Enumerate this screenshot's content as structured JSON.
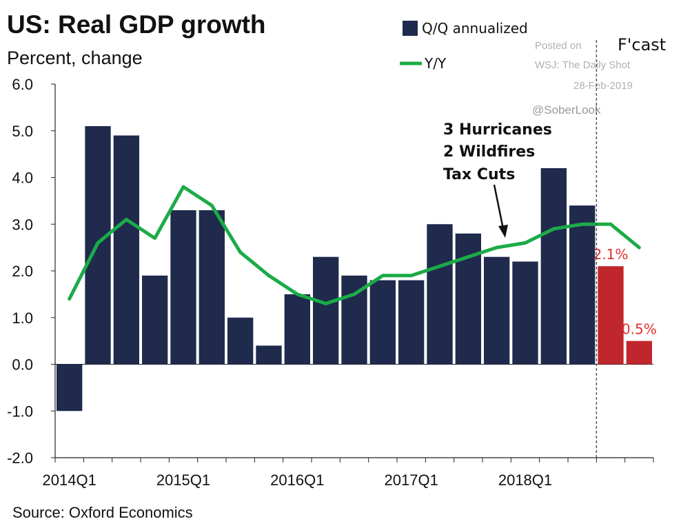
{
  "header": {
    "title": "US: Real GDP growth",
    "subtitle": "Percent, change"
  },
  "legend": {
    "bars_label": "Q/Q annualized",
    "line_label": "Y/Y"
  },
  "watermark": {
    "line1": "Posted on",
    "line2": "WSJ: The Daily Shot",
    "line3": "28-Feb-2019",
    "line4": "@SoberLook"
  },
  "forecast_label": "F'cast",
  "annotation": {
    "line1": "3 Hurricanes",
    "line2": "2 Wildfires",
    "line3": "Tax Cuts"
  },
  "source": "Source: Oxford Economics",
  "colors": {
    "bar": "#1f2a4d",
    "forecast_bar": "#c0272d",
    "line": "#1bab48",
    "label_red": "#e03030"
  },
  "chart_data": {
    "type": "bar",
    "title": "US: Real GDP growth",
    "ylabel": "Percent, change",
    "ylim": [
      -2.0,
      6.0
    ],
    "yticks": [
      "6.0",
      "5.0",
      "4.0",
      "3.0",
      "2.0",
      "1.0",
      "0.0",
      "-1.0",
      "-2.0"
    ],
    "ytick_values": [
      6,
      5,
      4,
      3,
      2,
      1,
      0,
      -1,
      -2
    ],
    "categories": [
      "2014Q1",
      "2014Q2",
      "2014Q3",
      "2014Q4",
      "2015Q1",
      "2015Q2",
      "2015Q3",
      "2015Q4",
      "2016Q1",
      "2016Q2",
      "2016Q3",
      "2016Q4",
      "2017Q1",
      "2017Q2",
      "2017Q3",
      "2017Q4",
      "2018Q1",
      "2018Q2",
      "2018Q3",
      "2018Q4",
      "2019Q1"
    ],
    "xtick_labels": [
      {
        "index": 0,
        "label": "2014Q1"
      },
      {
        "index": 4,
        "label": "2015Q1"
      },
      {
        "index": 8,
        "label": "2016Q1"
      },
      {
        "index": 12,
        "label": "2017Q1"
      },
      {
        "index": 16,
        "label": "2018Q1"
      }
    ],
    "series": [
      {
        "name": "Q/Q annualized",
        "kind": "bar",
        "values": [
          -1.0,
          5.1,
          4.9,
          1.9,
          3.3,
          3.3,
          1.0,
          0.4,
          1.5,
          2.3,
          1.9,
          1.8,
          1.8,
          3.0,
          2.8,
          2.3,
          2.2,
          4.2,
          3.4,
          2.1,
          0.5
        ],
        "forecast_from_index": 19
      },
      {
        "name": "Y/Y",
        "kind": "line",
        "values": [
          1.4,
          2.6,
          3.1,
          2.7,
          3.8,
          3.4,
          2.4,
          1.9,
          1.5,
          1.3,
          1.5,
          1.9,
          1.9,
          2.1,
          2.3,
          2.5,
          2.6,
          2.9,
          3.0,
          3.0,
          2.5
        ]
      }
    ],
    "data_labels": [
      {
        "index": 19,
        "label": "2.1%"
      },
      {
        "index": 20,
        "label": "0.5%"
      }
    ],
    "forecast_divider_after_index": 18
  }
}
